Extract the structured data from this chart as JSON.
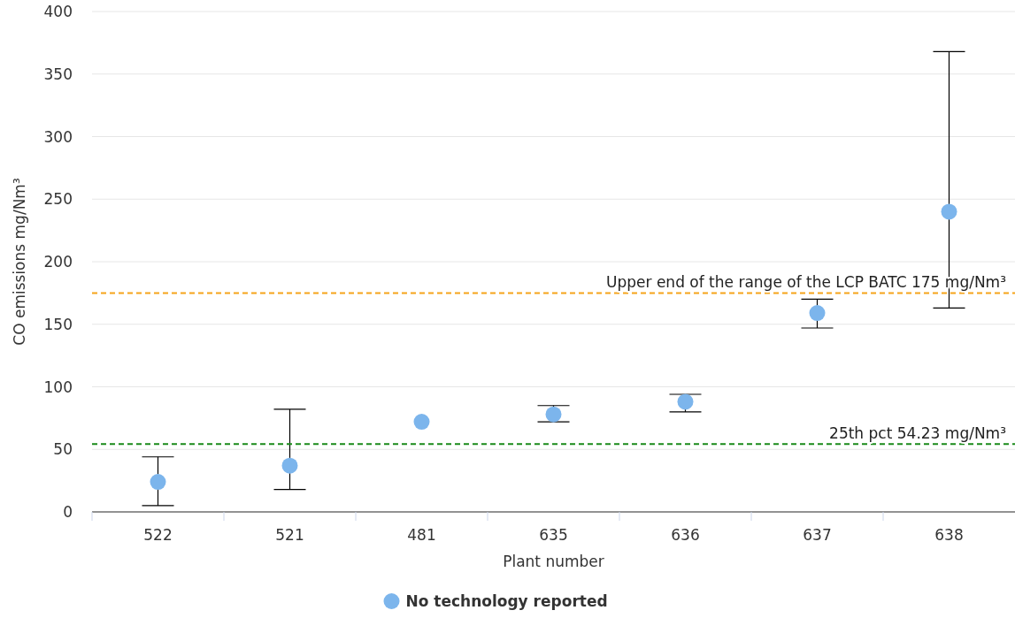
{
  "chart_data": {
    "type": "scatter",
    "xlabel": "Plant number",
    "ylabel": "CO emissions mg/Nm³",
    "categories": [
      "522",
      "521",
      "481",
      "635",
      "636",
      "637",
      "638"
    ],
    "series": [
      {
        "name": "No technology reported",
        "color": "#7cb5ec",
        "values": [
          24,
          37,
          72,
          78,
          88,
          159,
          240
        ],
        "errors": [
          [
            5,
            44
          ],
          [
            18,
            82
          ],
          null,
          [
            72,
            85
          ],
          [
            80,
            94
          ],
          [
            147,
            170
          ],
          [
            163,
            368
          ]
        ]
      }
    ],
    "ylim": [
      0,
      400
    ],
    "yticks": [
      0,
      50,
      100,
      150,
      200,
      250,
      300,
      350,
      400
    ],
    "grid": "y",
    "legend": "bottom",
    "marker": "circle",
    "ref_lines": [
      {
        "axis": "y",
        "value": 175,
        "label": "Upper end of the range of the LCP BATC 175 mg/Nm³",
        "color": "#f5a31a",
        "line_style": "dashed"
      },
      {
        "axis": "y",
        "value": 54.23,
        "label": "25th pct 54.23 mg/Nm³",
        "color": "#1a8a1a",
        "line_style": "dashed"
      }
    ]
  }
}
